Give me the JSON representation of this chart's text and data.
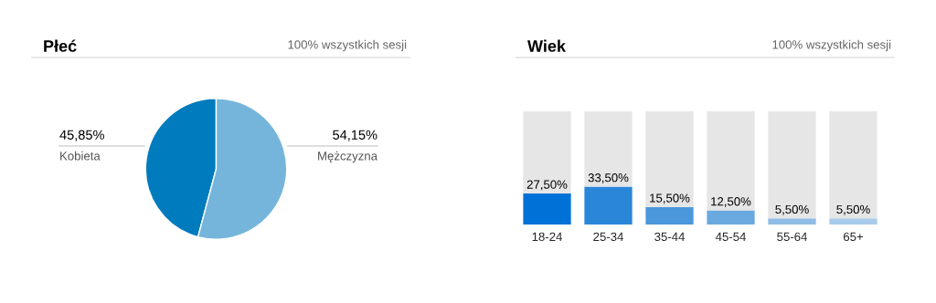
{
  "chart_data": [
    {
      "type": "pie",
      "title": "Płeć",
      "subtitle": "100% wszystkich sesji",
      "categories": [
        "Kobieta",
        "Mężczyzna"
      ],
      "values": [
        45.85,
        54.15
      ],
      "colors": [
        "#007bbd",
        "#76b5db"
      ],
      "value_labels": [
        "45,85%",
        "54,15%"
      ]
    },
    {
      "type": "bar",
      "title": "Wiek",
      "subtitle": "100% wszystkich sesji",
      "categories": [
        "18-24",
        "25-34",
        "35-44",
        "45-54",
        "55-64",
        "65+"
      ],
      "stacked": true,
      "ylim": [
        0,
        100
      ],
      "tick_labels": "x",
      "series": [
        {
          "colors": [
            "#0071d6",
            "#2a86d9",
            "#4a97dc",
            "#6aa9e0",
            "#8fbde6",
            "#a8cbeb"
          ],
          "values": [
            27.5,
            33.5,
            15.5,
            12.5,
            5.5,
            5.5
          ],
          "value_labels": [
            "27,50%",
            "33,50%",
            "15,50%",
            "12,50%",
            "5,50%",
            "5,50%"
          ]
        },
        {
          "color": "#e6e6e6",
          "values": [
            72.5,
            66.5,
            84.5,
            87.5,
            94.5,
            94.5
          ]
        }
      ]
    }
  ]
}
